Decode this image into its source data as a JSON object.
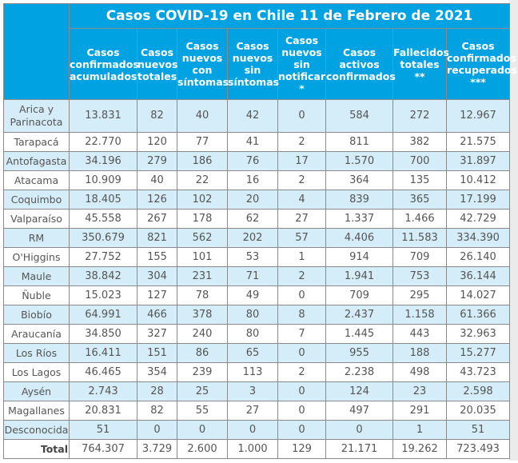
{
  "title": "Casos COVID-19 en Chile 11 de Febrero de 2021",
  "headers": [
    "Casos confirmados acumulados",
    "Casos nuevos totales",
    "Casos nuevos con síntomas",
    "Casos nuevos sin síntomas",
    "Casos nuevos sin notificar *",
    "Casos activos confirmados",
    "Fallecidos totales **",
    "Casos confirmados recuperados ***"
  ],
  "rows": [
    [
      "Arica y Parinacota",
      "13.831",
      "82",
      "40",
      "42",
      "0",
      "584",
      "272",
      "12.967"
    ],
    [
      "Tarapacá",
      "22.770",
      "120",
      "77",
      "41",
      "2",
      "811",
      "382",
      "21.575"
    ],
    [
      "Antofagasta",
      "34.196",
      "279",
      "186",
      "76",
      "17",
      "1.570",
      "700",
      "31.897"
    ],
    [
      "Atacama",
      "10.909",
      "40",
      "22",
      "16",
      "2",
      "364",
      "135",
      "10.412"
    ],
    [
      "Coquimbo",
      "18.405",
      "126",
      "102",
      "20",
      "4",
      "839",
      "365",
      "17.199"
    ],
    [
      "Valparaíso",
      "45.558",
      "267",
      "178",
      "62",
      "27",
      "1.337",
      "1.466",
      "42.729"
    ],
    [
      "RM",
      "350.679",
      "821",
      "562",
      "202",
      "57",
      "4.406",
      "11.583",
      "334.390"
    ],
    [
      "O'Higgins",
      "27.752",
      "155",
      "101",
      "53",
      "1",
      "914",
      "709",
      "26.140"
    ],
    [
      "Maule",
      "38.842",
      "304",
      "231",
      "71",
      "2",
      "1.941",
      "753",
      "36.144"
    ],
    [
      "Ñuble",
      "15.023",
      "127",
      "78",
      "49",
      "0",
      "709",
      "295",
      "14.027"
    ],
    [
      "Biobío",
      "64.991",
      "466",
      "378",
      "80",
      "8",
      "2.437",
      "1.158",
      "61.366"
    ],
    [
      "Araucanía",
      "34.850",
      "327",
      "240",
      "80",
      "7",
      "1.445",
      "443",
      "32.963"
    ],
    [
      "Los Ríos",
      "16.411",
      "151",
      "86",
      "65",
      "0",
      "955",
      "188",
      "15.277"
    ],
    [
      "Los Lagos",
      "46.465",
      "354",
      "239",
      "113",
      "2",
      "2.238",
      "498",
      "43.723"
    ],
    [
      "Aysén",
      "2.743",
      "28",
      "25",
      "3",
      "0",
      "124",
      "23",
      "2.598"
    ],
    [
      "Magallanes",
      "20.831",
      "82",
      "55",
      "27",
      "0",
      "497",
      "291",
      "20.035"
    ],
    [
      "Desconocida",
      "51",
      "0",
      "0",
      "0",
      "0",
      "0",
      "1",
      "51"
    ]
  ],
  "total": [
    "Total",
    "764.307",
    "3.729",
    "2.600",
    "1.000",
    "129",
    "21.171",
    "19.262",
    "723.493"
  ]
}
